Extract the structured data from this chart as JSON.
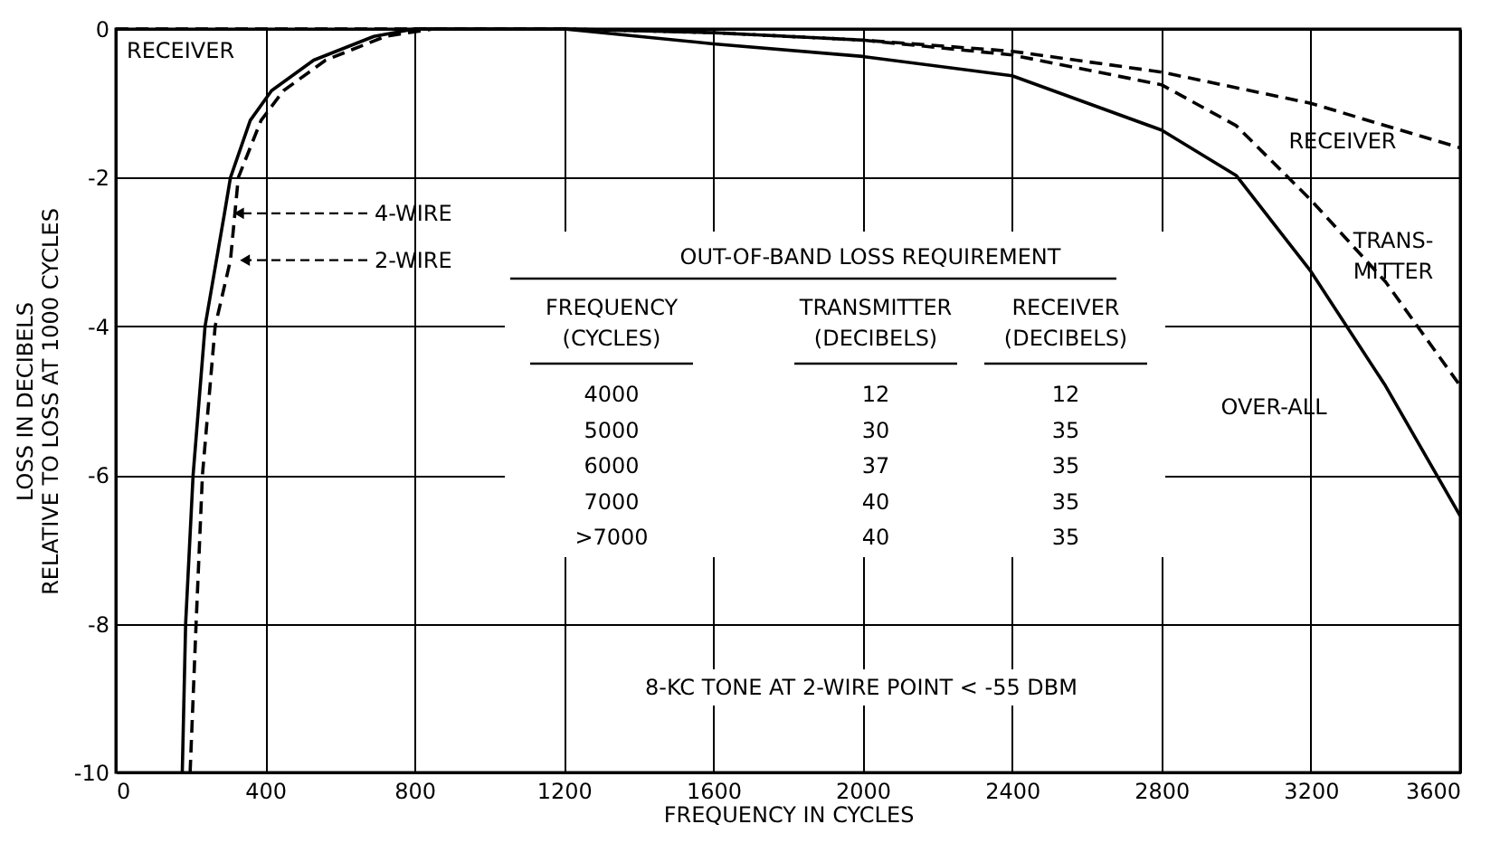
{
  "chart_data": {
    "type": "line",
    "xlabel": "FREQUENCY IN CYCLES",
    "ylabel": "LOSS IN DECIBELS\nRELATIVE TO LOSS AT 1000 CYCLES",
    "xlim": [
      0,
      3600
    ],
    "xticks": [
      0,
      400,
      800,
      1200,
      1600,
      2000,
      2400,
      2800,
      3200,
      3600
    ],
    "ylim": [
      -10,
      0
    ],
    "yticks": [
      -10,
      -8,
      -6,
      -4,
      -2,
      0
    ],
    "grid": true,
    "marker": "none",
    "series": [
      {
        "name": "OVER-ALL",
        "color": "#000000",
        "line_style": "solid",
        "x": [
          178,
          187,
          207,
          239,
          291,
          307,
          360,
          417,
          530,
          691,
          800,
          1000,
          1200,
          1600,
          2000,
          2400,
          2800,
          3000,
          3200,
          3400,
          3600
        ],
        "values": [
          -10,
          -8,
          -6,
          -4,
          -2.48,
          -2,
          -1.23,
          -0.83,
          -0.42,
          -0.1,
          0,
          0,
          0,
          -0.2,
          -0.37,
          -0.63,
          -1.36,
          -1.97,
          -3.26,
          -4.8,
          -6.55
        ]
      },
      {
        "color": "#000000",
        "line_style": "dashed",
        "x": [
          199,
          215,
          232,
          266,
          307,
          328,
          389,
          449,
          562,
          722,
          850
        ],
        "values": [
          -10,
          -8,
          -6,
          -4,
          -3.11,
          -2,
          -1.23,
          -0.83,
          -0.42,
          -0.1,
          0
        ]
      },
      {
        "name": "RECEIVER",
        "color": "#000000",
        "line_style": "dashed",
        "x": [
          0,
          800,
          1200,
          1600,
          2000,
          2400,
          2800,
          3200,
          3600
        ],
        "values": [
          0,
          0,
          0,
          -0.05,
          -0.15,
          -0.3,
          -0.58,
          -1,
          -1.6
        ]
      },
      {
        "name": "TRANS-MITTER",
        "color": "#000000",
        "line_style": "dashed",
        "x": [
          1200,
          1600,
          2000,
          2400,
          2800,
          3000,
          3200,
          3400,
          3600
        ],
        "values": [
          0,
          -0.05,
          -0.15,
          -0.35,
          -0.75,
          -1.3,
          -2.3,
          -3.4,
          -4.8
        ]
      }
    ],
    "annotations": [
      "OUT-OF-BAND LOSS REQUIREMENT",
      "FREQUENCY (CYCLES)",
      "TRANSMITTER (DECIBELS)",
      "RECEIVER (DECIBELS)",
      "4000",
      "12",
      "12",
      "5000",
      "30",
      "35",
      "6000",
      "37",
      "35",
      "7000",
      "40",
      "35",
      ">7000",
      "40",
      "35",
      "8-KC TONE AT 2-WIRE POINT < -55 DBM",
      {
        "text": "RECEIVER",
        "x": 0,
        "y": 0
      },
      {
        "text": "4-WIRE",
        "x": 291,
        "y": -2.48
      },
      {
        "text": "2-WIRE",
        "x": 307,
        "y": -3.11
      }
    ]
  }
}
